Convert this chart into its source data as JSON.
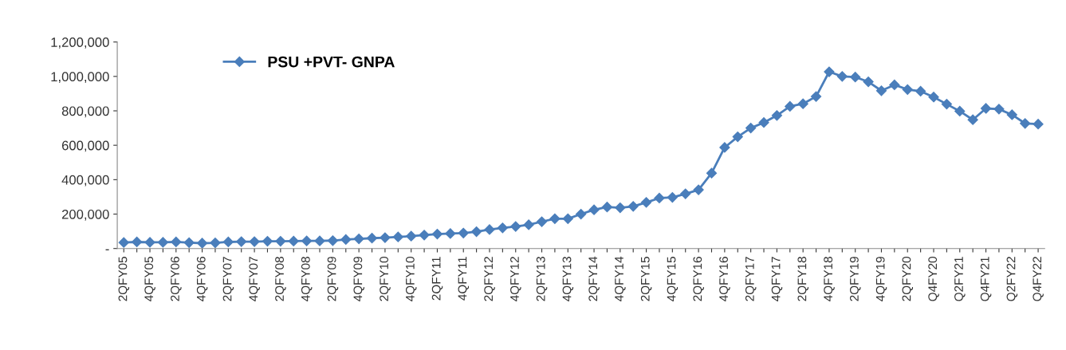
{
  "chart_data": {
    "type": "line",
    "categories": [
      "2QFY05",
      null,
      "4QFY05",
      null,
      "2QFY06",
      null,
      "4QFY06",
      null,
      "2QFY07",
      null,
      "4QFY07",
      null,
      "2QFY08",
      null,
      "4QFY08",
      null,
      "2QFY09",
      null,
      "4QFY09",
      null,
      "2QFY10",
      null,
      "4QFY10",
      null,
      "2QFY11",
      null,
      "4QFY11",
      null,
      "2QFY12",
      null,
      "4QFY12",
      null,
      "2QFY13",
      null,
      "4QFY13",
      null,
      "2QFY14",
      null,
      "4QFY14",
      null,
      "2QFY15",
      null,
      "4QFY15",
      null,
      "2QFY16",
      null,
      "4QFY16",
      null,
      "2QFY17",
      null,
      "4QFY17",
      null,
      "2QFY18",
      null,
      "4QFY18",
      null,
      "2QFY19",
      null,
      "4QFY19",
      null,
      "2QFY20",
      null,
      "Q4FY20",
      null,
      "Q2FY21",
      null,
      "Q4FY21",
      null,
      "Q2FY22",
      null,
      "Q4FY22"
    ],
    "series": [
      {
        "name": "PSU +PVT- GNPA",
        "color": "#4a7ebb",
        "values": [
          35000,
          38000,
          36000,
          36000,
          38000,
          34000,
          31000,
          33000,
          38000,
          40000,
          40000,
          42000,
          42000,
          43000,
          44000,
          44000,
          46000,
          52000,
          56000,
          60000,
          63000,
          67000,
          72000,
          78000,
          84000,
          87000,
          90000,
          98000,
          110000,
          120000,
          128000,
          138000,
          156000,
          173000,
          173000,
          200000,
          225000,
          241000,
          237000,
          245000,
          268000,
          293000,
          297000,
          318000,
          341000,
          438000,
          587000,
          649000,
          700000,
          732000,
          773000,
          826000,
          841000,
          883000,
          1027000,
          1000000,
          996000,
          969000,
          917000,
          951000,
          924000,
          914000,
          880000,
          839000,
          798000,
          748000,
          814000,
          810000,
          777000,
          727000,
          723000
        ]
      }
    ],
    "ylim": [
      0,
      1200000
    ],
    "yticks": [
      {
        "value": 0,
        "label": "-"
      },
      {
        "value": 200000,
        "label": "200,000"
      },
      {
        "value": 400000,
        "label": "400,000"
      },
      {
        "value": 600000,
        "label": "600,000"
      },
      {
        "value": 800000,
        "label": "800,000"
      },
      {
        "value": 1000000,
        "label": "1,000,000"
      },
      {
        "value": 1200000,
        "label": "1,200,000"
      }
    ],
    "grid": false,
    "legend": "top left",
    "marker": "diamond",
    "line_style": "solid"
  }
}
